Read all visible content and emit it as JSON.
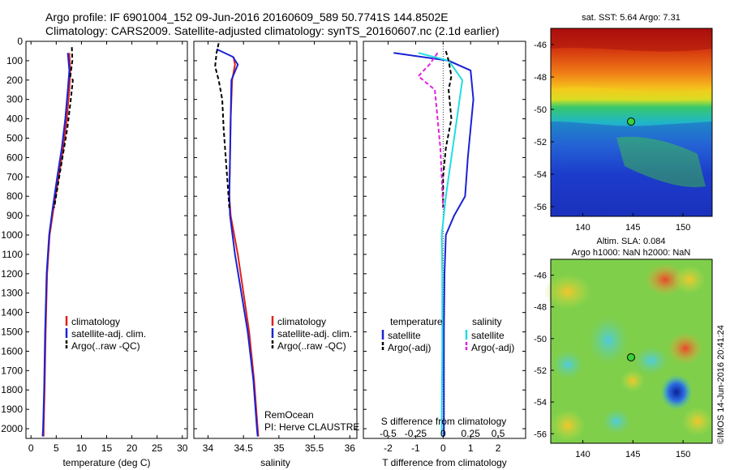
{
  "header": {
    "line1": "Argo profile: IF 6901004_152 09-Jun-2016 20160609_589 50.7741S 144.8502E",
    "line2": "Climatology: CARS2009. Satellite-adjusted climatology: synTS_20160607.nc (2.1d earlier)"
  },
  "stamp": "©IMOS 14-Jun-2016 20:41:24",
  "colors": {
    "climatology": "#e0201a",
    "satellite": "#1a22d4",
    "argo": "#000000",
    "sal_satellite": "#22dde0",
    "sal_argo": "#e020e0"
  },
  "chart_data": [
    {
      "type": "line",
      "name": "temperature",
      "xlabel": "temperature (deg C)",
      "ylim": [
        2050,
        0
      ],
      "xlim": [
        -1,
        31
      ],
      "xticks": [
        "0",
        "5",
        "10",
        "15",
        "20",
        "25",
        "30"
      ],
      "xtick_values": [
        0,
        5,
        10,
        15,
        20,
        25,
        30
      ],
      "yticks": [
        "0",
        "100",
        "200",
        "300",
        "400",
        "500",
        "600",
        "700",
        "800",
        "900",
        "1000",
        "1100",
        "1200",
        "1300",
        "1400",
        "1500",
        "1600",
        "1700",
        "1800",
        "1900",
        "2000"
      ],
      "legend": [
        "climatology",
        "satellite-adj. clim.",
        "Argo(..raw -QC)"
      ],
      "series": [
        {
          "key": "climatology",
          "style": "solid",
          "color": "#e0201a",
          "points": [
            [
              7.6,
              60
            ],
            [
              7.8,
              150
            ],
            [
              7.6,
              250
            ],
            [
              7.1,
              400
            ],
            [
              6.4,
              550
            ],
            [
              5.5,
              700
            ],
            [
              4.5,
              860
            ],
            [
              3.7,
              1000
            ],
            [
              3.2,
              1200
            ],
            [
              2.9,
              1500
            ],
            [
              2.7,
              1800
            ],
            [
              2.5,
              2000
            ],
            [
              2.5,
              2040
            ]
          ]
        },
        {
          "key": "satellite",
          "style": "solid",
          "color": "#1a22d4",
          "points": [
            [
              7.3,
              60
            ],
            [
              7.6,
              150
            ],
            [
              7.3,
              250
            ],
            [
              6.8,
              400
            ],
            [
              6.1,
              550
            ],
            [
              5.2,
              700
            ],
            [
              4.3,
              860
            ],
            [
              3.6,
              1000
            ],
            [
              3.1,
              1200
            ],
            [
              2.8,
              1500
            ],
            [
              2.6,
              1800
            ],
            [
              2.4,
              2000
            ],
            [
              2.3,
              2040
            ]
          ]
        },
        {
          "key": "argo",
          "style": "dashed",
          "color": "#000000",
          "points": [
            [
              8.1,
              30
            ],
            [
              8.2,
              100
            ],
            [
              7.8,
              180
            ],
            [
              8.3,
              200
            ],
            [
              7.9,
              300
            ],
            [
              7.2,
              450
            ],
            [
              6.5,
              560
            ],
            [
              5.6,
              700
            ],
            [
              4.6,
              860
            ]
          ]
        }
      ]
    },
    {
      "type": "line",
      "name": "salinity",
      "xlabel": "salinity",
      "ylim": [
        2050,
        0
      ],
      "xlim": [
        33.8,
        36.1
      ],
      "xticks": [
        "34",
        "34.5",
        "35",
        "35.5",
        "36"
      ],
      "xtick_values": [
        34,
        34.5,
        35,
        35.5,
        36
      ],
      "legend": [
        "climatology",
        "satellite-adj. clim.",
        "Argo(..raw -QC)"
      ],
      "annotation": [
        "RemOcean",
        "PI: Herve CLAUSTRE"
      ],
      "series": [
        {
          "key": "climatology",
          "style": "solid",
          "color": "#e0201a",
          "points": [
            [
              34.36,
              80
            ],
            [
              34.38,
              120
            ],
            [
              34.34,
              200
            ],
            [
              34.32,
              400
            ],
            [
              34.31,
              600
            ],
            [
              34.3,
              800
            ],
            [
              34.32,
              900
            ],
            [
              34.42,
              1100
            ],
            [
              34.5,
              1300
            ],
            [
              34.58,
              1500
            ],
            [
              34.65,
              1750
            ],
            [
              34.7,
              2000
            ],
            [
              34.71,
              2040
            ]
          ]
        },
        {
          "key": "satellite",
          "style": "solid",
          "color": "#1a22d4",
          "points": [
            [
              34.12,
              40
            ],
            [
              34.35,
              80
            ],
            [
              34.42,
              120
            ],
            [
              34.33,
              200
            ],
            [
              34.32,
              400
            ],
            [
              34.31,
              600
            ],
            [
              34.3,
              800
            ],
            [
              34.31,
              900
            ],
            [
              34.38,
              1100
            ],
            [
              34.47,
              1300
            ],
            [
              34.56,
              1500
            ],
            [
              34.64,
              1750
            ],
            [
              34.69,
              2000
            ],
            [
              34.7,
              2040
            ]
          ]
        },
        {
          "key": "argo",
          "style": "dashed",
          "color": "#000000",
          "points": [
            [
              34.15,
              10
            ],
            [
              34.12,
              60
            ],
            [
              34.1,
              130
            ],
            [
              34.15,
              200
            ],
            [
              34.2,
              300
            ],
            [
              34.22,
              450
            ],
            [
              34.25,
              600
            ],
            [
              34.28,
              750
            ],
            [
              34.3,
              860
            ]
          ]
        }
      ]
    },
    {
      "type": "line",
      "name": "difference",
      "xlabel": "T difference from climatology",
      "xlabel_top": "S difference from climatology",
      "ylim": [
        2050,
        0
      ],
      "xlim": [
        -2.9,
        3.0
      ],
      "xticks": [
        "-2",
        "-1",
        "0",
        "1",
        "2"
      ],
      "xtick_values": [
        -2,
        -1,
        0,
        1,
        2
      ],
      "sticks": [
        "-0.5",
        "-0.25",
        "0",
        "0.25",
        "0.5"
      ],
      "legend_titles": [
        "temperature",
        "salinity"
      ],
      "legend": [
        "satellite",
        "Argo(-adj)",
        "satellite",
        "Argo(-adj)"
      ],
      "series": [
        {
          "key": "T satellite",
          "style": "solid",
          "color": "#1a22d4",
          "points": [
            [
              -1.8,
              60
            ],
            [
              0.2,
              100
            ],
            [
              1.0,
              150
            ],
            [
              1.1,
              300
            ],
            [
              0.9,
              600
            ],
            [
              0.8,
              800
            ],
            [
              0.4,
              900
            ],
            [
              0.1,
              1000
            ],
            [
              0.05,
              1200
            ],
            [
              0.03,
              1500
            ],
            [
              0.03,
              1900
            ],
            [
              0.03,
              2040
            ]
          ]
        },
        {
          "key": "S satellite",
          "style": "solid",
          "color": "#22dde0",
          "points": [
            [
              -0.9,
              60
            ],
            [
              0.2,
              100
            ],
            [
              0.7,
              200
            ],
            [
              0.5,
              400
            ],
            [
              0.3,
              600
            ],
            [
              0.1,
              800
            ],
            [
              -0.05,
              1000
            ],
            [
              -0.03,
              1200
            ],
            [
              -0.03,
              1600
            ],
            [
              -0.05,
              1900
            ],
            [
              -0.05,
              2040
            ]
          ]
        },
        {
          "key": "T Argo",
          "style": "dashed",
          "color": "#000000",
          "points": [
            [
              0.1,
              50
            ],
            [
              0.2,
              100
            ],
            [
              0.3,
              180
            ],
            [
              0.2,
              250
            ],
            [
              0.3,
              400
            ],
            [
              0.1,
              550
            ],
            [
              0.0,
              700
            ],
            [
              0.0,
              860
            ]
          ]
        },
        {
          "key": "S Argo",
          "style": "dashed",
          "color": "#e020e0",
          "points": [
            [
              -0.2,
              60
            ],
            [
              -0.5,
              120
            ],
            [
              -0.9,
              180
            ],
            [
              -0.3,
              250
            ],
            [
              -0.2,
              400
            ],
            [
              -0.1,
              550
            ],
            [
              -0.05,
              700
            ],
            [
              0.0,
              860
            ]
          ]
        }
      ]
    }
  ],
  "maps": {
    "sst": {
      "title": "sat. SST: 5.64 Argo: 7.31",
      "yticks": [
        "-46",
        "-48",
        "-50",
        "-52",
        "-54",
        "-56"
      ],
      "xticks": [
        "140",
        "145",
        "150"
      ]
    },
    "sla": {
      "title1": "Altim. SLA: 0.084",
      "title2": "Argo h1000: NaN h2000: NaN",
      "yticks": [
        "-46",
        "-48",
        "-50",
        "-52",
        "-54",
        "-56"
      ],
      "xticks": [
        "140",
        "145",
        "150"
      ]
    }
  }
}
